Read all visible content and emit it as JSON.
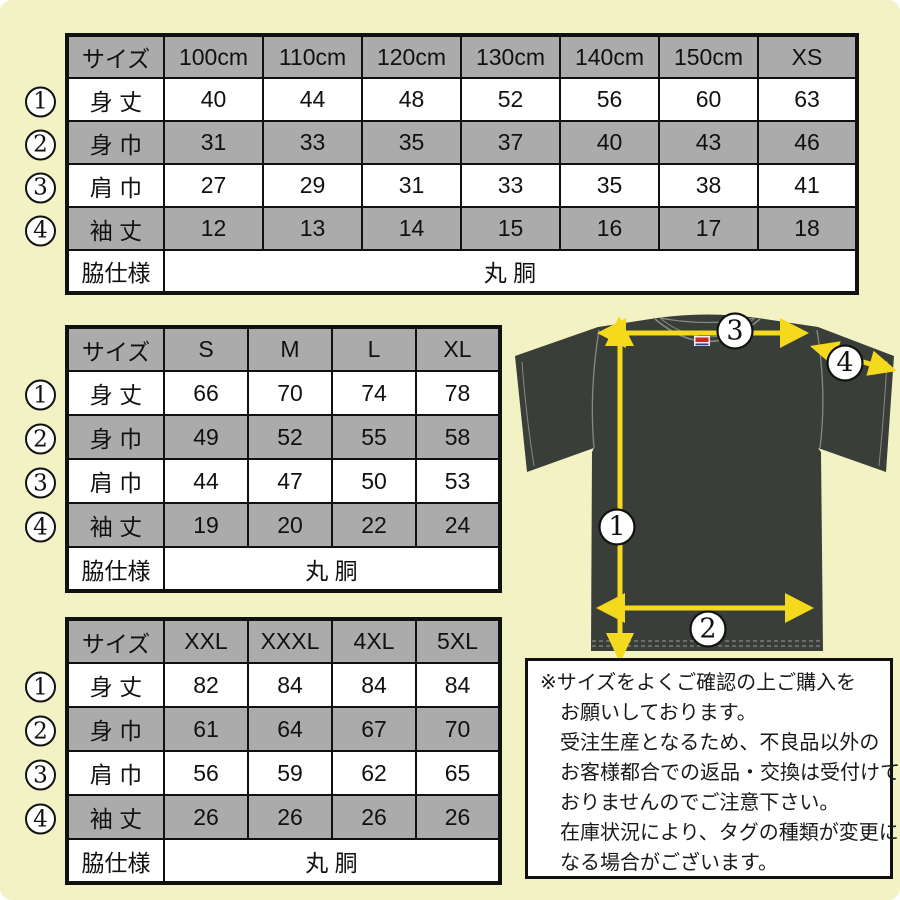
{
  "colors": {
    "page-bg": "#f2f2c4",
    "table-gray": "#ababab",
    "shirt": "#3a3e39",
    "shirt-stitch": "#878a82",
    "arrow-yellow": "#f4d91d",
    "note-bg": "#ffffff"
  },
  "tables": [
    {
      "name": "kids-sizes",
      "size_header": "サイズ",
      "columns": [
        "100cm",
        "110cm",
        "120cm",
        "130cm",
        "140cm",
        "150cm",
        "XS"
      ],
      "rows": [
        {
          "marker": "1",
          "label": "身 丈",
          "values": [
            "40",
            "44",
            "48",
            "52",
            "56",
            "60",
            "63"
          ]
        },
        {
          "marker": "2",
          "label": "身 巾",
          "values": [
            "31",
            "33",
            "35",
            "37",
            "40",
            "43",
            "46"
          ]
        },
        {
          "marker": "3",
          "label": "肩 巾",
          "values": [
            "27",
            "29",
            "31",
            "33",
            "35",
            "38",
            "41"
          ]
        },
        {
          "marker": "4",
          "label": "袖 丈",
          "values": [
            "12",
            "13",
            "14",
            "15",
            "16",
            "17",
            "18"
          ]
        }
      ],
      "footer": {
        "label": "脇仕様",
        "value": "丸 胴"
      }
    },
    {
      "name": "adult-sizes",
      "size_header": "サイズ",
      "columns": [
        "S",
        "M",
        "L",
        "XL"
      ],
      "rows": [
        {
          "marker": "1",
          "label": "身 丈",
          "values": [
            "66",
            "70",
            "74",
            "78"
          ]
        },
        {
          "marker": "2",
          "label": "身 巾",
          "values": [
            "49",
            "52",
            "55",
            "58"
          ]
        },
        {
          "marker": "3",
          "label": "肩 巾",
          "values": [
            "44",
            "47",
            "50",
            "53"
          ]
        },
        {
          "marker": "4",
          "label": "袖 丈",
          "values": [
            "19",
            "20",
            "22",
            "24"
          ]
        }
      ],
      "footer": {
        "label": "脇仕様",
        "value": "丸 胴"
      }
    },
    {
      "name": "large-sizes",
      "size_header": "サイズ",
      "columns": [
        "XXL",
        "XXXL",
        "4XL",
        "5XL"
      ],
      "rows": [
        {
          "marker": "1",
          "label": "身 丈",
          "values": [
            "82",
            "84",
            "84",
            "84"
          ]
        },
        {
          "marker": "2",
          "label": "身 巾",
          "values": [
            "61",
            "64",
            "67",
            "70"
          ]
        },
        {
          "marker": "3",
          "label": "肩 巾",
          "values": [
            "56",
            "59",
            "62",
            "65"
          ]
        },
        {
          "marker": "4",
          "label": "袖 丈",
          "values": [
            "26",
            "26",
            "26",
            "26"
          ]
        }
      ],
      "footer": {
        "label": "脇仕様",
        "value": "丸 胴"
      }
    }
  ],
  "diagram": {
    "markers": {
      "length": "1",
      "width": "2",
      "shoulder": "3",
      "sleeve": "4"
    }
  },
  "note": {
    "lines": [
      "※サイズをよくご確認の上ご購入を",
      "お願いしております。",
      "受注生産となるため、不良品以外の",
      "お客様都合での返品・交換は受付けて",
      "おりませんのでご注意下さい。",
      "在庫状況により、タグの種類が変更に",
      "なる場合がございます。"
    ]
  }
}
